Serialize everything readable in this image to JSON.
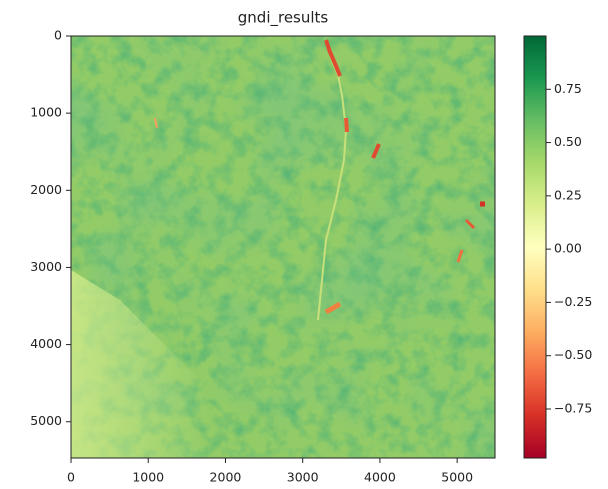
{
  "chart_data": {
    "type": "heatmap",
    "title": "gndi_results",
    "xlim": [
      0,
      5490
    ],
    "ylim": [
      5470,
      0
    ],
    "xticks": [
      0,
      1000,
      2000,
      3000,
      4000,
      5000
    ],
    "yticks": [
      0,
      1000,
      2000,
      3000,
      4000,
      5000
    ],
    "colorbar": {
      "lim": [
        -0.98,
        1.0
      ],
      "ticks": [
        {
          "value": -0.75,
          "label": "−0.75"
        },
        {
          "value": -0.5,
          "label": "−0.50"
        },
        {
          "value": -0.25,
          "label": "−0.25"
        },
        {
          "value": 0,
          "label": "0.00"
        },
        0.25,
        {
          "value": 0.5,
          "label": "0.50"
        },
        0.75
      ],
      "colors": [
        "#a50026",
        "#d73027",
        "#f46d43",
        "#fdae61",
        "#fee08b",
        "#ffffbf",
        "#d9ef8b",
        "#a6d96a",
        "#66bd63",
        "#1a9850",
        "#006837"
      ]
    }
  }
}
